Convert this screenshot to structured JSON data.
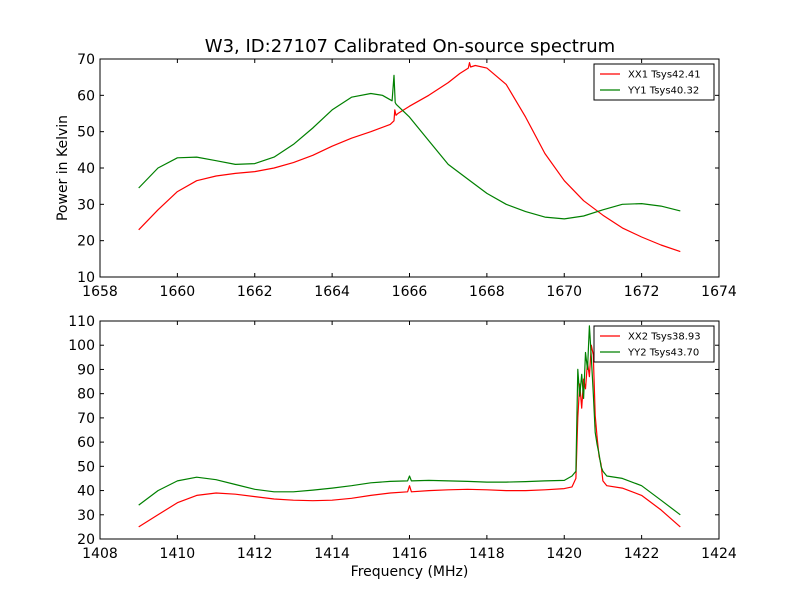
{
  "figure": {
    "title": "W3, ID:27107 Calibrated On-source spectrum"
  },
  "chart_data": [
    {
      "type": "line",
      "title": "W3, ID:27107 Calibrated On-source spectrum",
      "xlabel": "",
      "ylabel": "Power in Kelvin",
      "xlim": [
        1658,
        1674
      ],
      "ylim": [
        10,
        70
      ],
      "xticks": [
        1658,
        1660,
        1662,
        1664,
        1666,
        1668,
        1670,
        1672,
        1674
      ],
      "yticks": [
        10,
        20,
        30,
        40,
        50,
        60,
        70
      ],
      "legend_position": "top-right",
      "series": [
        {
          "name": "XX1 Tsys42.41",
          "color": "#ff0000",
          "x": [
            1659.0,
            1659.5,
            1660.0,
            1660.5,
            1661.0,
            1661.5,
            1662.0,
            1662.5,
            1663.0,
            1663.5,
            1664.0,
            1664.5,
            1665.0,
            1665.5,
            1665.6,
            1665.62,
            1665.65,
            1665.7,
            1666.0,
            1666.5,
            1667.0,
            1667.3,
            1667.52,
            1667.55,
            1667.58,
            1667.7,
            1668.0,
            1668.5,
            1669.0,
            1669.5,
            1670.0,
            1670.5,
            1671.0,
            1671.5,
            1672.0,
            1672.5,
            1673.0
          ],
          "y": [
            23,
            28.5,
            33.5,
            36.5,
            37.8,
            38.5,
            39,
            40,
            41.5,
            43.5,
            46,
            48.2,
            50,
            52,
            53,
            56,
            54.5,
            55,
            57,
            60,
            63.5,
            66,
            67.5,
            69,
            67.8,
            68.2,
            67.5,
            63,
            54,
            44,
            36.5,
            31,
            27,
            23.5,
            21,
            18.8,
            17
          ]
        },
        {
          "name": "YY1 Tsys40.32",
          "color": "#008000",
          "x": [
            1659.0,
            1659.5,
            1660.0,
            1660.5,
            1661.0,
            1661.5,
            1662.0,
            1662.5,
            1663.0,
            1663.5,
            1664.0,
            1664.5,
            1665.0,
            1665.3,
            1665.55,
            1665.6,
            1665.63,
            1665.66,
            1666.0,
            1666.5,
            1667.0,
            1667.5,
            1668.0,
            1668.5,
            1669.0,
            1669.5,
            1670.0,
            1670.5,
            1671.0,
            1671.5,
            1672.0,
            1672.5,
            1673.0
          ],
          "y": [
            34.5,
            40,
            42.8,
            43,
            42,
            41,
            41.2,
            43,
            46.5,
            51,
            56,
            59.5,
            60.5,
            60,
            58.5,
            65.5,
            58,
            57.5,
            54,
            47.5,
            41,
            37,
            33,
            30,
            28,
            26.5,
            26,
            26.8,
            28.5,
            30,
            30.2,
            29.5,
            28.2
          ]
        }
      ]
    },
    {
      "type": "line",
      "title": "",
      "xlabel": "Frequency (MHz)",
      "ylabel": "",
      "xlim": [
        1408,
        1424
      ],
      "ylim": [
        20,
        110
      ],
      "xticks": [
        1408,
        1410,
        1412,
        1414,
        1416,
        1418,
        1420,
        1422,
        1424
      ],
      "yticks": [
        20,
        30,
        40,
        50,
        60,
        70,
        80,
        90,
        100,
        110
      ],
      "legend_position": "top-right",
      "series": [
        {
          "name": "XX2 Tsys38.93",
          "color": "#ff0000",
          "x": [
            1409.0,
            1409.5,
            1410.0,
            1410.5,
            1411.0,
            1411.5,
            1412.0,
            1412.5,
            1413.0,
            1413.5,
            1414.0,
            1414.5,
            1415.0,
            1415.5,
            1415.95,
            1416.0,
            1416.05,
            1416.5,
            1417.0,
            1417.5,
            1418.0,
            1418.5,
            1419.0,
            1419.5,
            1420.0,
            1420.2,
            1420.3,
            1420.35,
            1420.4,
            1420.45,
            1420.5,
            1420.55,
            1420.6,
            1420.65,
            1420.7,
            1420.75,
            1420.8,
            1420.85,
            1420.9,
            1420.95,
            1421.0,
            1421.1,
            1421.5,
            1422.0,
            1422.5,
            1423.0
          ],
          "y": [
            25,
            30,
            35,
            38,
            39,
            38.5,
            37.5,
            36.5,
            36,
            35.8,
            36,
            36.8,
            38,
            39,
            39.5,
            42,
            39.5,
            40,
            40.3,
            40.5,
            40.3,
            40,
            40,
            40.3,
            40.8,
            41.5,
            45,
            70,
            84,
            74,
            86,
            82,
            93,
            87,
            100,
            96,
            71,
            62,
            54,
            51,
            44,
            42,
            41,
            38,
            32,
            25
          ]
        },
        {
          "name": "YY2 Tsys43.70",
          "color": "#008000",
          "x": [
            1409.0,
            1409.5,
            1410.0,
            1410.5,
            1411.0,
            1411.5,
            1412.0,
            1412.5,
            1413.0,
            1413.5,
            1414.0,
            1414.5,
            1415.0,
            1415.5,
            1415.95,
            1416.0,
            1416.05,
            1416.5,
            1417.0,
            1417.5,
            1418.0,
            1418.5,
            1419.0,
            1419.5,
            1420.0,
            1420.2,
            1420.3,
            1420.35,
            1420.4,
            1420.45,
            1420.5,
            1420.55,
            1420.6,
            1420.65,
            1420.7,
            1420.75,
            1420.8,
            1420.85,
            1420.9,
            1420.95,
            1421.0,
            1421.1,
            1421.5,
            1422.0,
            1422.5,
            1423.0
          ],
          "y": [
            34,
            40,
            44,
            45.5,
            44.5,
            42.5,
            40.5,
            39.5,
            39.5,
            40.2,
            41,
            42,
            43.2,
            43.8,
            44,
            46,
            44,
            44.2,
            44,
            43.8,
            43.5,
            43.5,
            43.7,
            44,
            44.2,
            46,
            48,
            90,
            79,
            88,
            78,
            97,
            90,
            108,
            95,
            80,
            64,
            59,
            55,
            50,
            48,
            46,
            45,
            42,
            36,
            30
          ]
        }
      ]
    }
  ]
}
